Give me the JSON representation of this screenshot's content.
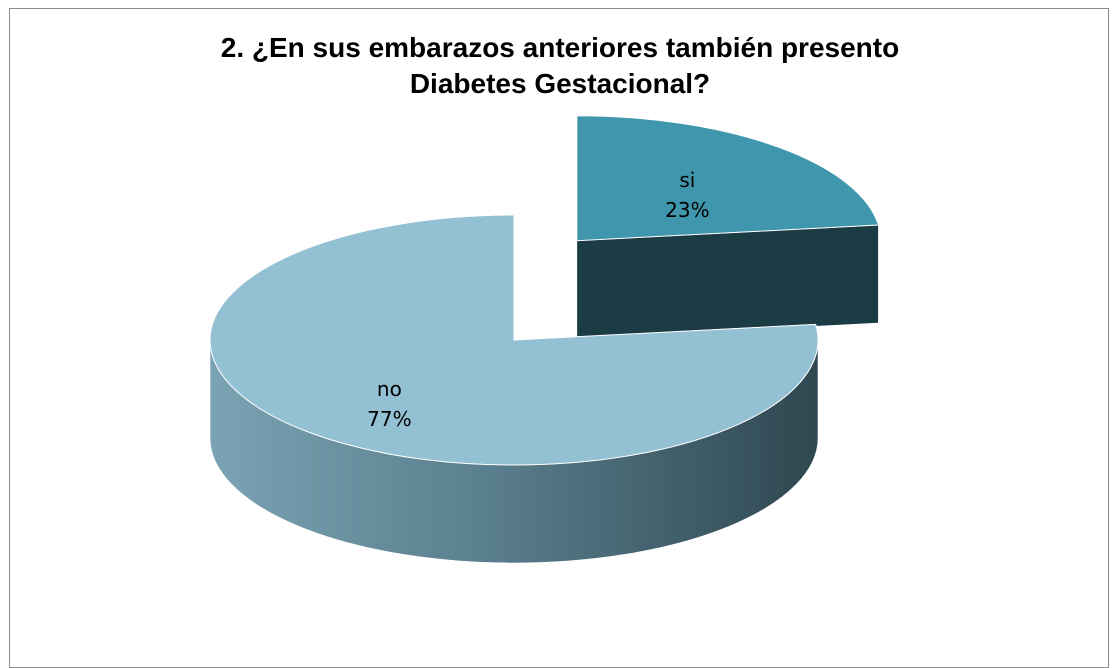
{
  "chart_data": {
    "type": "pie",
    "style": "3d-exploded",
    "title_lines": [
      "2. ¿En sus embarazos anteriores también presento",
      "Diabetes Gestacional?"
    ],
    "legend": "none",
    "slices": [
      {
        "name": "si",
        "value": 23,
        "label": "23%",
        "color": "#4096ac",
        "exploded": true
      },
      {
        "name": "no",
        "value": 77,
        "label": "77%",
        "color": "#93c0d2",
        "exploded": false
      }
    ]
  }
}
